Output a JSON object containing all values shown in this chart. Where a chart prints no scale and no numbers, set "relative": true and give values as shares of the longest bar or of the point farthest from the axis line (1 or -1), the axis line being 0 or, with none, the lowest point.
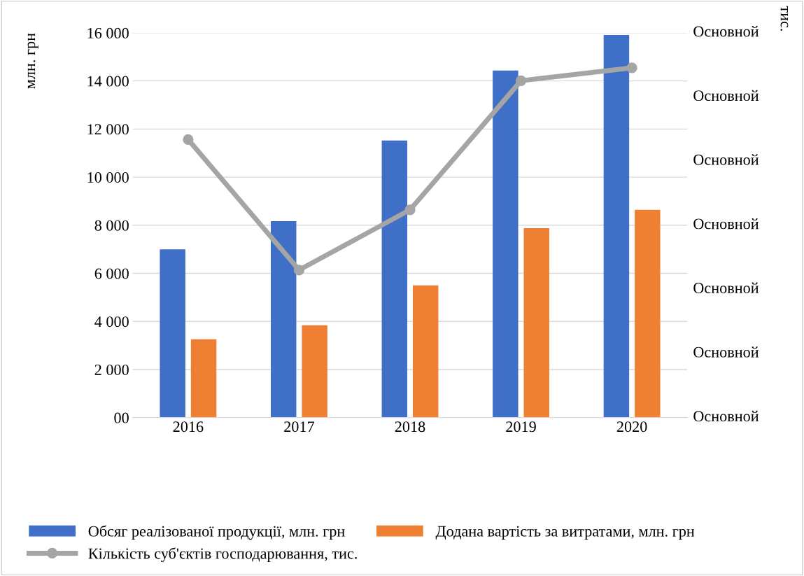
{
  "chart_data": [
    {
      "type": "bar",
      "categories": [
        "2016",
        "2017",
        "2018",
        "2019",
        "2020"
      ],
      "ylabel": "млн. грн",
      "ylim": [
        0,
        16000
      ],
      "yticks": [
        {
          "value": 0,
          "label": "00"
        },
        {
          "value": 2000,
          "label": "2 000"
        },
        {
          "value": 4000,
          "label": "4 000"
        },
        {
          "value": 6000,
          "label": "6 000"
        },
        {
          "value": 8000,
          "label": "8 000"
        },
        {
          "value": 10000,
          "label": "10 000"
        },
        {
          "value": 12000,
          "label": "12 000"
        },
        {
          "value": 14000,
          "label": "14 000"
        },
        {
          "value": 16000,
          "label": "16 000"
        }
      ],
      "series": [
        {
          "name": "Обсяг реалізованої продукції, млн. грн",
          "color": "#3f6fc6",
          "values": [
            7000,
            8170,
            11520,
            14430,
            15910
          ]
        },
        {
          "name": "Додана вартість за витратами, млн. грн",
          "color": "#ef7f33",
          "values": [
            3260,
            3840,
            5500,
            7880,
            8640
          ]
        }
      ],
      "grid": "y",
      "legend": "bottom"
    },
    {
      "type": "line",
      "categories": [
        "2016",
        "2017",
        "2018",
        "2019",
        "2020"
      ],
      "relative": true,
      "tick_labels": false,
      "y2label": "тис.",
      "y2_categories": [
        "Основной",
        "Основной",
        "Основной",
        "Основной",
        "Основной",
        "Основной",
        "Основной"
      ],
      "series": [
        {
          "name": "Кількість суб'єктів господарювання, тис.",
          "color": "#a5a5a5",
          "values": [
            0.795,
            0.422,
            0.594,
            0.963,
            1
          ]
        }
      ],
      "marker": "circle",
      "legend": "bottom"
    }
  ]
}
